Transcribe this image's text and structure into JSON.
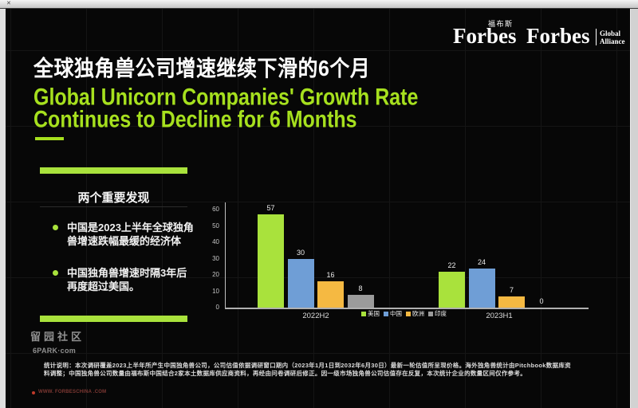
{
  "window": {
    "topbar_mark": "✕"
  },
  "header": {
    "logo_forbes_cn": {
      "brand": "Forbes",
      "cn": "福布斯"
    },
    "logo_forbes_global": {
      "brand": "Forbes",
      "suffix_line1": "Global",
      "suffix_line2": "Alliance"
    }
  },
  "titles": {
    "cn": "全球独角兽公司增速继续下滑的6个月",
    "en_line1": "Global Unicorn Companies' Growth Rate",
    "en_line2": "Continues to Decline for 6 Months"
  },
  "findings": {
    "heading": "两个重要发现",
    "items": [
      "中国是2023上半年全球独角\n兽增速跌幅最缓的经济体",
      "中国独角兽增速时隔3年后\n再度超过美国。"
    ]
  },
  "chart_data": {
    "type": "bar",
    "categories": [
      "2022H2",
      "2023H1"
    ],
    "series": [
      {
        "name": "美国",
        "color": "#a9e23c",
        "values": [
          57,
          22
        ]
      },
      {
        "name": "中国",
        "color": "#6f9ed6",
        "values": [
          30,
          24
        ]
      },
      {
        "name": "欧洲",
        "color": "#f5b942",
        "values": [
          16,
          7
        ]
      },
      {
        "name": "印度",
        "color": "#9b9b9b",
        "values": [
          8,
          0
        ]
      }
    ],
    "ylim": [
      0,
      60
    ],
    "yticks": [
      0,
      10,
      20,
      30,
      40,
      50,
      60
    ],
    "legend_position": "bottom-center",
    "grid": false
  },
  "footnote": {
    "line1": "统计说明：本次调研覆盖2023上半年所产生中国独角兽公司，公司估值依据调研窗口期内（2023年1月1日到2032年6月30日）最新一轮估值所呈现价格。海外独角兽统计由Pitchbook数据库资",
    "line2": "料调整；中国独角兽公司数量由福布斯中国结合2家本土数据库供应商资料，再经由问卷调研后修正。因一级市场独角兽公司估值存在反复，本次统计企业的数量区间仅作参考。"
  },
  "watermark": {
    "line1": "留园社区",
    "line2": "6PARK·com"
  },
  "footer": {
    "url": "WWW. FORBESCHINA .COM"
  }
}
